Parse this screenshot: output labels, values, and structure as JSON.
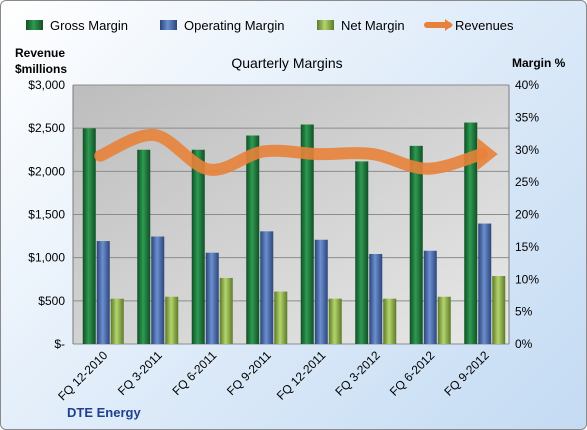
{
  "chart_data": {
    "type": "bar",
    "title": "Quarterly Margins",
    "company": "DTE Energy",
    "categories": [
      "FQ 12-2010",
      "FQ 3-2011",
      "FQ 6-2011",
      "FQ 9-2011",
      "FQ 12-2011",
      "FQ 3-2012",
      "FQ 6-2012",
      "FQ 9-2012"
    ],
    "left_axis": {
      "title_lines": [
        "Revenue",
        "$millions"
      ],
      "ylim": [
        0,
        3000
      ],
      "ticks": [
        "$-",
        "$500",
        "$1,000",
        "$1,500",
        "$2,000",
        "$2,500",
        "$3,000"
      ],
      "tick_values": [
        0,
        500,
        1000,
        1500,
        2000,
        2500,
        3000
      ]
    },
    "right_axis": {
      "title": "Margin %",
      "ylim": [
        0,
        40
      ],
      "ticks": [
        "0%",
        "5%",
        "10%",
        "15%",
        "20%",
        "25%",
        "30%",
        "35%",
        "40%"
      ],
      "tick_values": [
        0,
        5,
        10,
        15,
        20,
        25,
        30,
        35,
        40
      ]
    },
    "series": [
      {
        "name": "Gross Margin",
        "axis": "right",
        "color": "#1f7a3c",
        "values": [
          33.3,
          30.0,
          30.0,
          32.2,
          33.9,
          28.2,
          30.6,
          34.2
        ]
      },
      {
        "name": "Operating Margin",
        "axis": "right",
        "color": "#3f63a6",
        "values": [
          15.9,
          16.6,
          14.1,
          17.4,
          16.1,
          13.9,
          14.4,
          18.6
        ]
      },
      {
        "name": "Net Margin",
        "axis": "right",
        "color": "#8db04a",
        "values": [
          7.0,
          7.3,
          10.2,
          8.1,
          7.0,
          7.0,
          7.3,
          10.5
        ]
      },
      {
        "name": "Revenues",
        "axis": "left",
        "type": "line",
        "color": "#e8823a",
        "values": [
          2180,
          2420,
          2020,
          2230,
          2200,
          2200,
          2030,
          2200
        ]
      }
    ],
    "grid": true,
    "legend": "top"
  }
}
